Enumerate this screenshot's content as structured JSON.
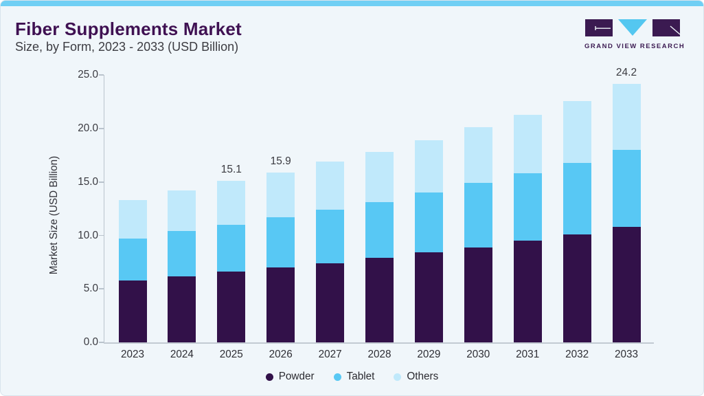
{
  "page": {
    "title": "Fiber Supplements Market",
    "subtitle": "Size, by Form, 2023 - 2033 (USD Billion)",
    "accent_color": "#70cff4",
    "background_color": "#f0f6fa"
  },
  "logo": {
    "brand": "GRAND VIEW RESEARCH",
    "purple": "#3b1a51",
    "blue": "#54c7f0"
  },
  "chart_data": {
    "type": "bar",
    "stacked": true,
    "title": "Fiber Supplements Market Size, by Form, 2023 - 2033 (USD Billion)",
    "categories": [
      "2023",
      "2024",
      "2025",
      "2026",
      "2027",
      "2028",
      "2029",
      "2030",
      "2031",
      "2032",
      "2033"
    ],
    "series": [
      {
        "name": "Powder",
        "color": "#321149",
        "values": [
          5.8,
          6.2,
          6.6,
          7.0,
          7.4,
          7.9,
          8.4,
          8.9,
          9.5,
          10.1,
          10.8
        ]
      },
      {
        "name": "Tablet",
        "color": "#58c8f4",
        "values": [
          3.9,
          4.2,
          4.4,
          4.7,
          5.0,
          5.2,
          5.6,
          6.0,
          6.3,
          6.7,
          7.2
        ]
      },
      {
        "name": "Others",
        "color": "#c0e9fb",
        "values": [
          3.6,
          3.8,
          4.1,
          4.2,
          4.5,
          4.7,
          4.9,
          5.2,
          5.5,
          5.8,
          6.2
        ]
      }
    ],
    "totals": [
      13.3,
      14.2,
      15.1,
      15.9,
      16.9,
      17.8,
      18.9,
      20.1,
      21.3,
      22.6,
      24.2
    ],
    "total_labels": {
      "2025": "15.1",
      "2026": "15.9",
      "2033": "24.2"
    },
    "ylabel": "Market Size (USD Billion)",
    "yticks": [
      "0.0",
      "5.0",
      "10.0",
      "15.0",
      "20.0",
      "25.0"
    ],
    "ylim": [
      0,
      25
    ],
    "grid": false,
    "legend_position": "bottom"
  }
}
